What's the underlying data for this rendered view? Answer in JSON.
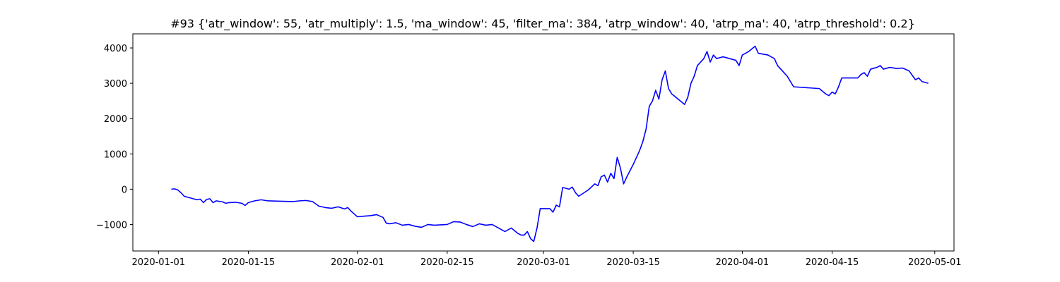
{
  "chart_data": {
    "type": "line",
    "title": "#93 {'atr_window': 55, 'atr_multiply': 1.5, 'ma_window': 45, 'filter_ma': 384, 'atrp_window': 40, 'atrp_ma': 40, 'atrp_threshold': 0.2}",
    "xlabel": "",
    "ylabel": "",
    "xlim": [
      "2019-12-28",
      "2020-05-04"
    ],
    "ylim": [
      -1750,
      4400
    ],
    "x_ticks": [
      "2020-01-01",
      "2020-01-15",
      "2020-02-01",
      "2020-02-15",
      "2020-03-01",
      "2020-03-15",
      "2020-04-01",
      "2020-04-15",
      "2020-05-01"
    ],
    "y_ticks": [
      -1000,
      0,
      1000,
      2000,
      3000,
      4000
    ],
    "grid": false,
    "series": [
      {
        "color": "#0000ff",
        "points": [
          [
            "2020-01-03",
            0
          ],
          [
            "2020-01-03 12:00",
            10
          ],
          [
            "2020-01-04",
            -20
          ],
          [
            "2020-01-04 12:00",
            -100
          ],
          [
            "2020-01-05",
            -200
          ],
          [
            "2020-01-06",
            -250
          ],
          [
            "2020-01-07",
            -300
          ],
          [
            "2020-01-07 12:00",
            -280
          ],
          [
            "2020-01-08",
            -380
          ],
          [
            "2020-01-08 12:00",
            -290
          ],
          [
            "2020-01-09",
            -270
          ],
          [
            "2020-01-09 12:00",
            -380
          ],
          [
            "2020-01-10",
            -330
          ],
          [
            "2020-01-11",
            -360
          ],
          [
            "2020-01-11 12:00",
            -400
          ],
          [
            "2020-01-12",
            -380
          ],
          [
            "2020-01-13",
            -370
          ],
          [
            "2020-01-14",
            -400
          ],
          [
            "2020-01-14 12:00",
            -460
          ],
          [
            "2020-01-15",
            -380
          ],
          [
            "2020-01-16",
            -330
          ],
          [
            "2020-01-17",
            -300
          ],
          [
            "2020-01-18",
            -330
          ],
          [
            "2020-01-20",
            -340
          ],
          [
            "2020-01-22",
            -350
          ],
          [
            "2020-01-23",
            -330
          ],
          [
            "2020-01-24",
            -320
          ],
          [
            "2020-01-25",
            -350
          ],
          [
            "2020-01-26",
            -480
          ],
          [
            "2020-01-27",
            -520
          ],
          [
            "2020-01-28",
            -540
          ],
          [
            "2020-01-29",
            -500
          ],
          [
            "2020-01-30",
            -560
          ],
          [
            "2020-01-30 12:00",
            -520
          ],
          [
            "2020-01-31",
            -620
          ],
          [
            "2020-02-01",
            -780
          ],
          [
            "2020-02-03",
            -750
          ],
          [
            "2020-02-04",
            -720
          ],
          [
            "2020-02-05",
            -800
          ],
          [
            "2020-02-05 12:00",
            -960
          ],
          [
            "2020-02-06",
            -980
          ],
          [
            "2020-02-07",
            -950
          ],
          [
            "2020-02-08",
            -1020
          ],
          [
            "2020-02-09",
            -1000
          ],
          [
            "2020-02-10",
            -1050
          ],
          [
            "2020-02-11",
            -1080
          ],
          [
            "2020-02-12",
            -1000
          ],
          [
            "2020-02-13",
            -1020
          ],
          [
            "2020-02-15",
            -1000
          ],
          [
            "2020-02-16",
            -920
          ],
          [
            "2020-02-17",
            -930
          ],
          [
            "2020-02-18",
            -1000
          ],
          [
            "2020-02-19",
            -1060
          ],
          [
            "2020-02-20",
            -980
          ],
          [
            "2020-02-21",
            -1020
          ],
          [
            "2020-02-22",
            -1000
          ],
          [
            "2020-02-23",
            -1100
          ],
          [
            "2020-02-24",
            -1200
          ],
          [
            "2020-02-25",
            -1100
          ],
          [
            "2020-02-26",
            -1250
          ],
          [
            "2020-02-26 12:00",
            -1300
          ],
          [
            "2020-02-27",
            -1300
          ],
          [
            "2020-02-27 12:00",
            -1200
          ],
          [
            "2020-02-28",
            -1400
          ],
          [
            "2020-02-28 12:00",
            -1480
          ],
          [
            "2020-02-29",
            -1100
          ],
          [
            "2020-02-29 12:00",
            -550
          ],
          [
            "2020-03-02",
            -550
          ],
          [
            "2020-03-02 12:00",
            -650
          ],
          [
            "2020-03-03",
            -450
          ],
          [
            "2020-03-03 12:00",
            -500
          ],
          [
            "2020-03-04",
            50
          ],
          [
            "2020-03-05",
            0
          ],
          [
            "2020-03-05 12:00",
            60
          ],
          [
            "2020-03-06",
            -100
          ],
          [
            "2020-03-06 12:00",
            -200
          ],
          [
            "2020-03-08",
            -20
          ],
          [
            "2020-03-09",
            150
          ],
          [
            "2020-03-09 12:00",
            100
          ],
          [
            "2020-03-10",
            350
          ],
          [
            "2020-03-10 12:00",
            400
          ],
          [
            "2020-03-11",
            200
          ],
          [
            "2020-03-11 12:00",
            450
          ],
          [
            "2020-03-12",
            300
          ],
          [
            "2020-03-12 12:00",
            900
          ],
          [
            "2020-03-13",
            600
          ],
          [
            "2020-03-13 12:00",
            150
          ],
          [
            "2020-03-14",
            350
          ],
          [
            "2020-03-15",
            700
          ],
          [
            "2020-03-16",
            1100
          ],
          [
            "2020-03-16 12:00",
            1350
          ],
          [
            "2020-03-17",
            1700
          ],
          [
            "2020-03-17 12:00",
            2350
          ],
          [
            "2020-03-18",
            2500
          ],
          [
            "2020-03-18 12:00",
            2800
          ],
          [
            "2020-03-19",
            2550
          ],
          [
            "2020-03-19 12:00",
            3100
          ],
          [
            "2020-03-20",
            3350
          ],
          [
            "2020-03-20 12:00",
            2850
          ],
          [
            "2020-03-21",
            2700
          ],
          [
            "2020-03-23",
            2400
          ],
          [
            "2020-03-23 12:00",
            2600
          ],
          [
            "2020-03-24",
            3000
          ],
          [
            "2020-03-24 12:00",
            3200
          ],
          [
            "2020-03-25",
            3500
          ],
          [
            "2020-03-25 12:00",
            3600
          ],
          [
            "2020-03-26",
            3700
          ],
          [
            "2020-03-26 12:00",
            3900
          ],
          [
            "2020-03-27",
            3600
          ],
          [
            "2020-03-27 12:00",
            3800
          ],
          [
            "2020-03-28",
            3700
          ],
          [
            "2020-03-29",
            3750
          ],
          [
            "2020-03-30",
            3700
          ],
          [
            "2020-03-31",
            3650
          ],
          [
            "2020-03-31 12:00",
            3500
          ],
          [
            "2020-04-01",
            3800
          ],
          [
            "2020-04-02",
            3900
          ],
          [
            "2020-04-03",
            4050
          ],
          [
            "2020-04-03 12:00",
            3850
          ],
          [
            "2020-04-05",
            3800
          ],
          [
            "2020-04-06",
            3700
          ],
          [
            "2020-04-06 12:00",
            3500
          ],
          [
            "2020-04-07",
            3400
          ],
          [
            "2020-04-07 12:00",
            3300
          ],
          [
            "2020-04-08",
            3200
          ],
          [
            "2020-04-09",
            2900
          ],
          [
            "2020-04-13",
            2850
          ],
          [
            "2020-04-14",
            2700
          ],
          [
            "2020-04-14 12:00",
            2650
          ],
          [
            "2020-04-15",
            2750
          ],
          [
            "2020-04-15 12:00",
            2700
          ],
          [
            "2020-04-16",
            2900
          ],
          [
            "2020-04-16 12:00",
            3150
          ],
          [
            "2020-04-19",
            3150
          ],
          [
            "2020-04-19 12:00",
            3250
          ],
          [
            "2020-04-20",
            3300
          ],
          [
            "2020-04-20 12:00",
            3200
          ],
          [
            "2020-04-21",
            3400
          ],
          [
            "2020-04-22",
            3450
          ],
          [
            "2020-04-22 12:00",
            3500
          ],
          [
            "2020-04-23",
            3400
          ],
          [
            "2020-04-24",
            3450
          ],
          [
            "2020-04-25",
            3420
          ],
          [
            "2020-04-26",
            3430
          ],
          [
            "2020-04-27",
            3350
          ],
          [
            "2020-04-28",
            3100
          ],
          [
            "2020-04-28 12:00",
            3150
          ],
          [
            "2020-04-29",
            3050
          ],
          [
            "2020-04-30",
            3000
          ]
        ]
      }
    ]
  }
}
